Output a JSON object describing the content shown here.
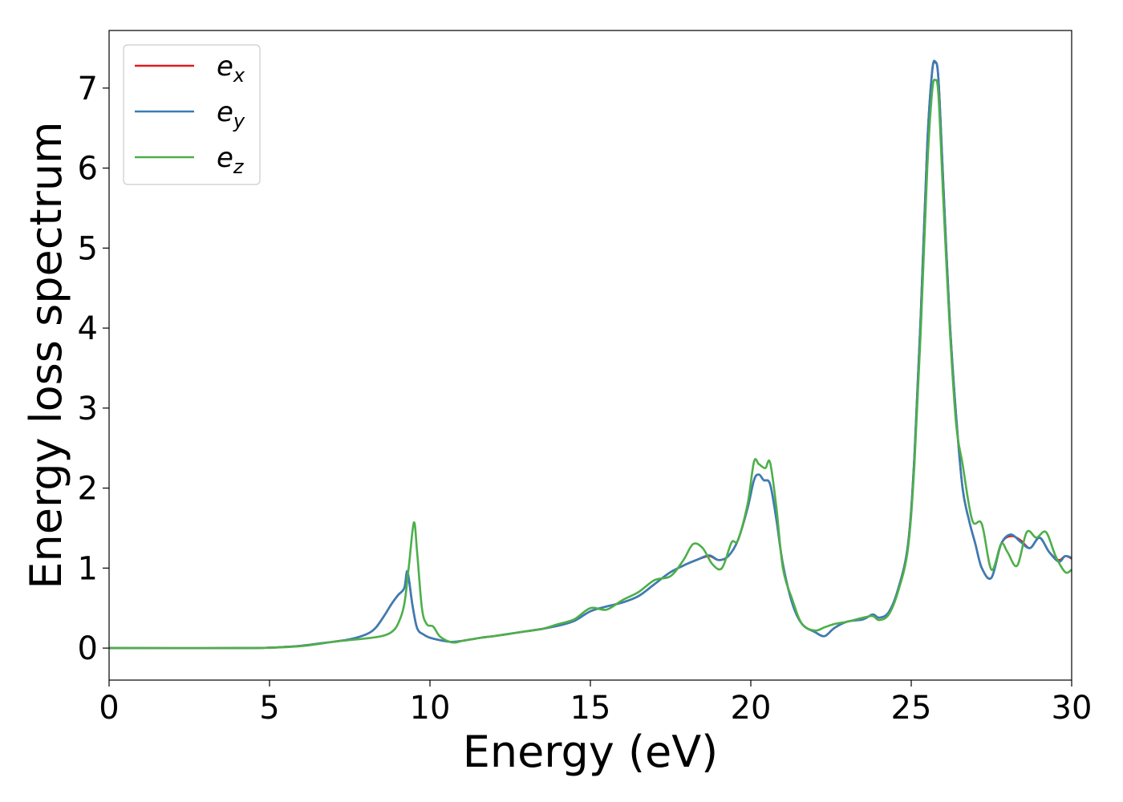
{
  "chart_data": {
    "type": "line",
    "title": "",
    "xlabel": "Energy (eV)",
    "ylabel": "Energy loss spectrum",
    "xlim": [
      0,
      30
    ],
    "ylim": [
      -0.4,
      7.72
    ],
    "xticks": [
      0,
      5,
      10,
      15,
      20,
      25,
      30
    ],
    "yticks": [
      0,
      1,
      2,
      3,
      4,
      5,
      6,
      7
    ],
    "grid": false,
    "legend_position": "top-left",
    "series": [
      {
        "name": "e",
        "subscript": "x",
        "color": "#e41a1c",
        "x": [
          0,
          4,
          5,
          5.5,
          6,
          6.5,
          7,
          7.5,
          8,
          8.3,
          8.6,
          8.8,
          9.0,
          9.2,
          9.3,
          9.45,
          9.6,
          9.8,
          10.0,
          10.3,
          10.6,
          10.8,
          11.0,
          11.3,
          11.6,
          12.0,
          12.5,
          13.0,
          13.5,
          14.0,
          14.5,
          15.0,
          15.5,
          16.0,
          16.5,
          17.0,
          17.5,
          18.0,
          18.3,
          18.7,
          19.0,
          19.3,
          19.6,
          19.9,
          20.1,
          20.25,
          20.4,
          20.6,
          20.8,
          21.0,
          21.3,
          21.6,
          22.0,
          22.3,
          22.6,
          23.0,
          23.5,
          23.8,
          24.0,
          24.3,
          24.6,
          24.9,
          25.1,
          25.3,
          25.5,
          25.65,
          25.75,
          25.85,
          26.0,
          26.2,
          26.4,
          26.6,
          26.8,
          27.0,
          27.2,
          27.5,
          27.8,
          28.1,
          28.4,
          28.7,
          29.0,
          29.3,
          29.6,
          29.8,
          30.0
        ],
        "values": [
          0,
          0,
          0.005,
          0.015,
          0.03,
          0.055,
          0.08,
          0.11,
          0.17,
          0.25,
          0.42,
          0.55,
          0.66,
          0.75,
          0.95,
          0.55,
          0.25,
          0.17,
          0.13,
          0.1,
          0.08,
          0.08,
          0.09,
          0.11,
          0.13,
          0.15,
          0.18,
          0.21,
          0.24,
          0.28,
          0.34,
          0.46,
          0.52,
          0.57,
          0.65,
          0.8,
          0.95,
          1.05,
          1.1,
          1.15,
          1.1,
          1.15,
          1.35,
          1.75,
          2.1,
          2.17,
          2.1,
          2.05,
          1.6,
          1.05,
          0.55,
          0.3,
          0.2,
          0.15,
          0.25,
          0.33,
          0.36,
          0.42,
          0.38,
          0.45,
          0.75,
          1.3,
          2.4,
          4.2,
          6.3,
          7.2,
          7.32,
          7.1,
          5.8,
          4.1,
          2.9,
          2.0,
          1.6,
          1.3,
          1.0,
          0.88,
          1.3,
          1.4,
          1.35,
          1.25,
          1.38,
          1.2,
          1.1,
          1.15,
          1.12
        ]
      },
      {
        "name": "e",
        "subscript": "y",
        "color": "#377eb8",
        "x": [
          0,
          4,
          5,
          5.5,
          6,
          6.5,
          7,
          7.5,
          8,
          8.3,
          8.6,
          8.8,
          9.0,
          9.2,
          9.3,
          9.45,
          9.6,
          9.8,
          10.0,
          10.3,
          10.6,
          10.8,
          11.0,
          11.3,
          11.6,
          12.0,
          12.5,
          13.0,
          13.5,
          14.0,
          14.5,
          15.0,
          15.5,
          16.0,
          16.5,
          17.0,
          17.5,
          18.0,
          18.3,
          18.7,
          19.0,
          19.3,
          19.6,
          19.9,
          20.1,
          20.25,
          20.4,
          20.6,
          20.8,
          21.0,
          21.3,
          21.6,
          22.0,
          22.3,
          22.6,
          23.0,
          23.5,
          23.8,
          24.0,
          24.3,
          24.6,
          24.9,
          25.1,
          25.3,
          25.5,
          25.65,
          25.75,
          25.85,
          26.0,
          26.2,
          26.4,
          26.6,
          26.8,
          27.0,
          27.2,
          27.5,
          27.8,
          28.1,
          28.4,
          28.7,
          29.0,
          29.3,
          29.6,
          29.8,
          30.0
        ],
        "values": [
          0,
          0,
          0.005,
          0.015,
          0.03,
          0.055,
          0.08,
          0.11,
          0.17,
          0.25,
          0.42,
          0.55,
          0.66,
          0.75,
          0.96,
          0.55,
          0.25,
          0.17,
          0.13,
          0.1,
          0.08,
          0.08,
          0.09,
          0.11,
          0.13,
          0.15,
          0.18,
          0.21,
          0.24,
          0.28,
          0.34,
          0.46,
          0.52,
          0.57,
          0.65,
          0.8,
          0.95,
          1.05,
          1.1,
          1.16,
          1.1,
          1.15,
          1.35,
          1.75,
          2.1,
          2.17,
          2.1,
          2.05,
          1.6,
          1.05,
          0.55,
          0.3,
          0.2,
          0.15,
          0.25,
          0.33,
          0.36,
          0.42,
          0.38,
          0.45,
          0.75,
          1.3,
          2.4,
          4.2,
          6.3,
          7.2,
          7.33,
          7.1,
          5.8,
          4.1,
          2.9,
          2.0,
          1.6,
          1.3,
          1.0,
          0.88,
          1.3,
          1.42,
          1.33,
          1.25,
          1.38,
          1.2,
          1.08,
          1.15,
          1.13
        ]
      },
      {
        "name": "e",
        "subscript": "z",
        "color": "#4daf4a",
        "x": [
          0,
          4,
          5,
          5.5,
          6,
          6.5,
          7,
          7.5,
          8,
          8.5,
          8.8,
          9.0,
          9.2,
          9.35,
          9.5,
          9.6,
          9.75,
          9.9,
          10.1,
          10.3,
          10.6,
          10.8,
          11.0,
          11.3,
          11.6,
          12.0,
          12.5,
          13.0,
          13.5,
          14.0,
          14.5,
          15.0,
          15.5,
          16.0,
          16.5,
          17.0,
          17.5,
          17.9,
          18.2,
          18.5,
          18.8,
          19.1,
          19.4,
          19.6,
          19.9,
          20.1,
          20.25,
          20.45,
          20.6,
          20.8,
          21.0,
          21.3,
          21.6,
          22.0,
          22.3,
          22.6,
          23.0,
          23.5,
          23.8,
          24.0,
          24.3,
          24.6,
          24.9,
          25.1,
          25.3,
          25.5,
          25.65,
          25.75,
          25.85,
          26.0,
          26.2,
          26.4,
          26.6,
          26.9,
          27.2,
          27.5,
          27.8,
          28.0,
          28.3,
          28.6,
          28.9,
          29.2,
          29.5,
          29.8,
          30.0
        ],
        "values": [
          0,
          0,
          0.005,
          0.012,
          0.025,
          0.05,
          0.08,
          0.1,
          0.12,
          0.15,
          0.2,
          0.3,
          0.55,
          1.05,
          1.57,
          1.2,
          0.5,
          0.3,
          0.27,
          0.15,
          0.08,
          0.07,
          0.09,
          0.11,
          0.13,
          0.15,
          0.18,
          0.21,
          0.24,
          0.3,
          0.36,
          0.5,
          0.48,
          0.6,
          0.7,
          0.85,
          0.9,
          1.1,
          1.3,
          1.25,
          1.05,
          1.0,
          1.32,
          1.35,
          1.8,
          2.33,
          2.3,
          2.25,
          2.32,
          1.75,
          1.0,
          0.6,
          0.3,
          0.22,
          0.26,
          0.3,
          0.33,
          0.38,
          0.4,
          0.35,
          0.42,
          0.72,
          1.25,
          2.3,
          4.0,
          6.0,
          6.95,
          7.1,
          6.9,
          5.6,
          4.0,
          2.8,
          2.3,
          1.6,
          1.55,
          0.98,
          1.3,
          1.2,
          1.03,
          1.45,
          1.38,
          1.45,
          1.15,
          0.95,
          0.98
        ]
      }
    ]
  }
}
